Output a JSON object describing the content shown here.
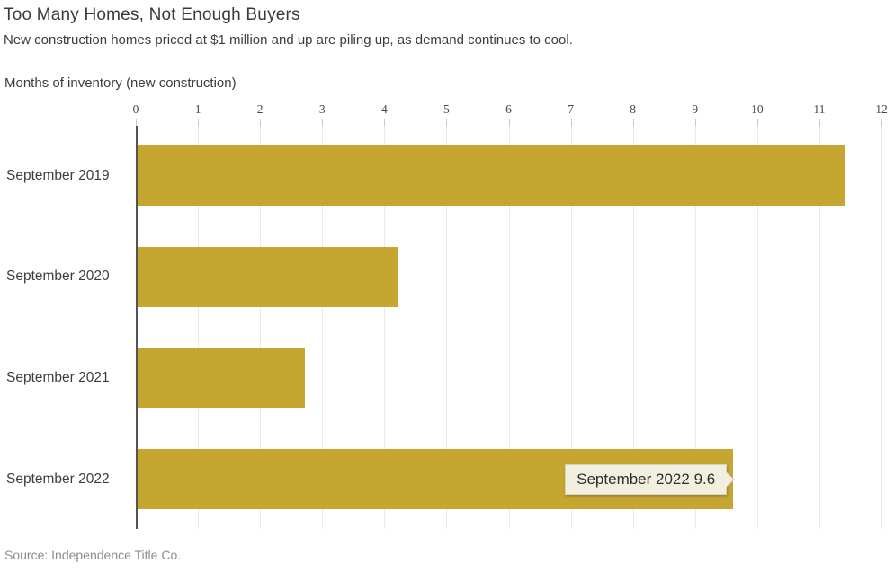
{
  "header": {
    "title": "Too Many Homes, Not Enough Buyers",
    "subtitle": "New construction homes priced at $1 million and up are piling up, as demand continues to cool.",
    "axis_caption": "Months of inventory (new construction)"
  },
  "chart_data": {
    "type": "bar",
    "orientation": "horizontal",
    "title": "Too Many Homes, Not Enough Buyers",
    "xlabel": "Months of inventory (new construction)",
    "ylabel": "",
    "categories": [
      "September 2019",
      "September 2020",
      "September 2021",
      "September 2022"
    ],
    "values": [
      11.4,
      4.2,
      2.7,
      9.6
    ],
    "xlim": [
      0,
      12
    ],
    "x_ticks": [
      0,
      1,
      2,
      3,
      4,
      5,
      6,
      7,
      8,
      9,
      10,
      11,
      12
    ],
    "grid": true,
    "legend": false,
    "bar_color": "#c5a630"
  },
  "tooltip": {
    "text": "September 2022 9.6",
    "category": "September 2022",
    "value": 9.6,
    "bg_color": "#f2efe1"
  },
  "footer": {
    "source": "Source: Independence Title Co."
  },
  "colors": {
    "bar": "#c5a630",
    "gridline": "#e9e9e9",
    "axis_line": "#555555",
    "text": "#3d3d3d",
    "tick_text": "#474747",
    "source_text": "#8c8c8c",
    "tooltip_bg": "#f2efe1",
    "tooltip_border": "#d6d3c4"
  }
}
